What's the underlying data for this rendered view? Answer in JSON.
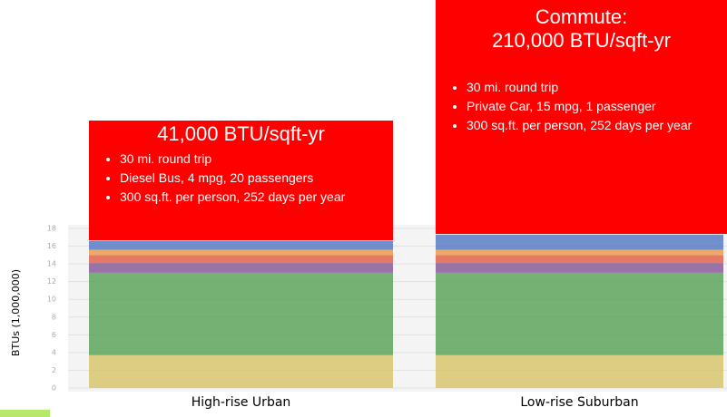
{
  "chart_data": {
    "type": "stacked_bar",
    "y_label": "BTUs (1,000,000)",
    "categories": [
      "High-rise Urban",
      "Low-rise Suburban"
    ],
    "series": [
      {
        "color": "#d8c66e",
        "values": [
          3.7,
          3.7
        ]
      },
      {
        "color": "#5ea45a",
        "values": [
          9.3,
          9.3
        ]
      },
      {
        "color": "#8a5c98",
        "values": [
          1.1,
          1.1
        ]
      },
      {
        "color": "#e0644c",
        "values": [
          0.9,
          0.9
        ]
      },
      {
        "color": "#e99c50",
        "values": [
          0.6,
          0.6
        ]
      },
      {
        "color": "#5b7cc6",
        "values": [
          1.0,
          1.7
        ]
      }
    ],
    "ylim": [
      0,
      18
    ],
    "yticks": [
      0,
      2,
      4,
      6,
      8,
      10,
      12,
      14,
      16,
      18
    ],
    "grid": true,
    "annotations": [
      {
        "title": [
          "41,000 BTU/sqft-yr"
        ],
        "bullets": [
          "30 mi. round trip",
          "Diesel Bus, 4 mpg, 20 passengers",
          "300 sq.ft. per person, 252 days per year"
        ]
      },
      {
        "title": [
          "Commute:",
          "210,000 BTU/sqft-yr"
        ],
        "bullets": [
          "30 mi. round trip",
          "Private Car, 15 mpg, 1 passenger",
          "300 sq.ft. per person, 252 days per year"
        ]
      }
    ]
  }
}
